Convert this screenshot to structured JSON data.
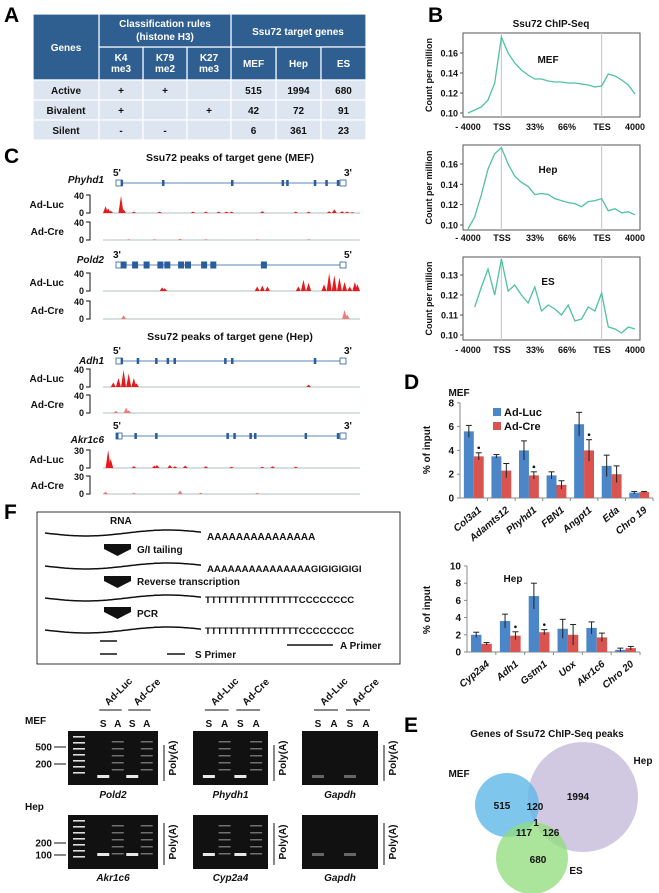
{
  "panel_labels": {
    "A": "A",
    "B": "B",
    "C": "C",
    "D": "D",
    "E": "E",
    "F": "F"
  },
  "colors": {
    "table_header": "#2f5e91",
    "table_row": "#dde5f0",
    "line": "#4fc39a",
    "luc": "#4a86c8",
    "cre": "#d9534f",
    "peak": "#e8191c",
    "gene": "#2a5d9c",
    "mef": "#5fb8e8",
    "hep": "#c9bfdc",
    "es": "#8fdc7a"
  },
  "table": {
    "genes_header": "Genes",
    "rules_header_1": "Classification rules",
    "rules_header_2": "(histone H3)",
    "targets_header": "Ssu72 target genes",
    "marks": [
      [
        "K4",
        "me3"
      ],
      [
        "K79",
        "me2"
      ],
      [
        "K27",
        "me3"
      ]
    ],
    "cells": [
      "MEF",
      "Hep",
      "ES"
    ],
    "rows": [
      {
        "gene": "Active",
        "marks": [
          "+",
          "+",
          ""
        ],
        "values": [
          "515",
          "1994",
          "680"
        ]
      },
      {
        "gene": "Bivalent",
        "marks": [
          "+",
          "",
          "+"
        ],
        "values": [
          "42",
          "72",
          "91"
        ]
      },
      {
        "gene": "Silent",
        "marks": [
          "-",
          "-",
          ""
        ],
        "values": [
          "6",
          "361",
          "23"
        ]
      }
    ]
  },
  "chart_data": [
    {
      "id": "B-MEF",
      "type": "line",
      "title": "Ssu72 ChIP-Seq",
      "label": "MEF",
      "ylabel": "Count per million",
      "xticks": [
        "- 4000",
        "TSS",
        "33%",
        "66%",
        "TES",
        "4000"
      ],
      "yticks": [
        "0.10",
        "0.12",
        "0.14",
        "0.16"
      ],
      "ylim": [
        0.1,
        0.18
      ],
      "y": [
        0.1,
        0.103,
        0.106,
        0.113,
        0.13,
        0.176,
        0.16,
        0.15,
        0.143,
        0.138,
        0.134,
        0.134,
        0.132,
        0.131,
        0.131,
        0.13,
        0.13,
        0.129,
        0.128,
        0.126,
        0.127,
        0.139,
        0.137,
        0.133,
        0.128,
        0.119
      ]
    },
    {
      "id": "B-Hep",
      "type": "line",
      "label": "Hep",
      "ylabel": "Count per million",
      "xticks": [
        "- 4000",
        "TSS",
        "33%",
        "66%",
        "TES",
        "4000"
      ],
      "yticks": [
        "0.10",
        "0.12",
        "0.14",
        "0.16"
      ],
      "ylim": [
        0.1,
        0.18
      ],
      "y": [
        0.095,
        0.108,
        0.13,
        0.155,
        0.17,
        0.176,
        0.16,
        0.148,
        0.142,
        0.138,
        0.13,
        0.131,
        0.13,
        0.126,
        0.124,
        0.122,
        0.121,
        0.118,
        0.123,
        0.124,
        0.126,
        0.114,
        0.116,
        0.112,
        0.113,
        0.11
      ]
    },
    {
      "id": "B-ES",
      "type": "line",
      "label": "ES",
      "ylabel": "Count per million",
      "xticks": [
        "- 4000",
        "TSS",
        "33%",
        "66%",
        "TES",
        "4000"
      ],
      "yticks": [
        "0.10",
        "0.11",
        "0.12",
        "0.13"
      ],
      "ylim": [
        0.1,
        0.14
      ],
      "y": [
        null,
        0.114,
        0.124,
        0.133,
        0.12,
        0.138,
        0.122,
        0.125,
        0.12,
        0.116,
        0.124,
        0.112,
        0.115,
        0.113,
        0.11,
        0.115,
        0.107,
        0.108,
        0.114,
        0.112,
        0.121,
        0.104,
        0.103,
        0.101,
        0.104,
        0.103
      ]
    },
    {
      "id": "D-MEF",
      "type": "bar",
      "title": "MEF",
      "ylabel": "% of input",
      "ylim": [
        0,
        8
      ],
      "yticks": [
        "0",
        "2",
        "4",
        "6",
        "8"
      ],
      "categories": [
        "Col3a1",
        "Adamts12",
        "Phyhd1",
        "FBN1",
        "Angpt1",
        "Eda",
        "Chro 19"
      ],
      "series": [
        {
          "name": "Ad-Luc",
          "values": [
            5.6,
            3.5,
            4.0,
            1.9,
            6.2,
            2.7,
            0.45
          ],
          "errors": [
            0.5,
            0.15,
            0.8,
            0.3,
            1.0,
            0.9,
            0.1
          ]
        },
        {
          "name": "Ad-Cre",
          "values": [
            3.5,
            2.3,
            1.9,
            1.1,
            4.0,
            2.0,
            0.5
          ],
          "errors": [
            0.3,
            0.6,
            0.3,
            0.35,
            0.9,
            0.7,
            0.05
          ]
        }
      ],
      "significant": [
        true,
        false,
        true,
        false,
        true,
        false,
        false
      ],
      "legend": "top-left"
    },
    {
      "id": "D-Hep",
      "type": "bar",
      "title": "Hep",
      "ylabel": "% of input",
      "ylim": [
        0,
        10
      ],
      "yticks": [
        "0",
        "2",
        "4",
        "6",
        "8",
        "10"
      ],
      "categories": [
        "Cyp2a4",
        "Adh1",
        "Gstm1",
        "Uox",
        "Akr1c6",
        "Chro 20"
      ],
      "series": [
        {
          "name": "Ad-Luc",
          "values": [
            2.0,
            3.6,
            6.5,
            2.7,
            2.8,
            0.25
          ],
          "errors": [
            0.3,
            0.8,
            1.5,
            1.1,
            0.7,
            0.2
          ]
        },
        {
          "name": "Ad-Cre",
          "values": [
            0.95,
            1.9,
            2.3,
            2.0,
            1.7,
            0.45
          ],
          "errors": [
            0.15,
            0.45,
            0.3,
            1.2,
            0.5,
            0.2
          ]
        }
      ],
      "significant": [
        false,
        true,
        true,
        false,
        false,
        false
      ]
    },
    {
      "id": "E",
      "type": "venn",
      "title": "Genes of Ssu72 ChIP-Seq peaks",
      "sets": [
        "MEF",
        "Hep",
        "ES"
      ],
      "regions": {
        "MEF_only": "515",
        "Hep_only": "1994",
        "ES_only": "680",
        "MEF_Hep": "120",
        "MEF_ES": "117",
        "Hep_ES": "126",
        "all": "1"
      }
    }
  ],
  "genome_tracks": {
    "title_mef": "Ssu72 peaks of target gene (MEF)",
    "title_hep": "Ssu72 peaks of target gene  (Hep)",
    "genes": [
      {
        "name": "Phyhd1",
        "left": "5'",
        "right": "3'",
        "exons": [
          2,
          20,
          50,
          72,
          74,
          86,
          91,
          96
        ],
        "thick": false,
        "tracks": [
          {
            "label": "Ad-Luc",
            "max": "40",
            "min": "0",
            "peaks": [
              [
                1,
                15
              ],
              [
                2,
                10
              ],
              [
                3,
                5
              ],
              [
                7,
                38
              ],
              [
                8,
                8
              ],
              [
                12,
                3
              ],
              [
                22,
                3
              ],
              [
                35,
                3
              ],
              [
                40,
                3
              ],
              [
                45,
                3
              ],
              [
                48,
                3
              ],
              [
                50,
                3
              ],
              [
                62,
                4
              ],
              [
                75,
                3
              ],
              [
                80,
                3
              ],
              [
                88,
                4
              ],
              [
                90,
                8
              ],
              [
                93,
                4
              ],
              [
                95,
                3
              ],
              [
                97,
                2
              ]
            ]
          },
          {
            "label": "Ad-Cre",
            "max": "40",
            "min": "0",
            "peaks": [
              [
                10,
                2
              ],
              [
                20,
                2
              ],
              [
                30,
                3
              ],
              [
                40,
                2
              ],
              [
                60,
                2
              ],
              [
                80,
                2
              ]
            ]
          }
        ]
      },
      {
        "name": "Pold2",
        "left": "3'",
        "right": "5'",
        "exons": [
          2,
          7,
          12,
          18,
          21,
          27,
          30,
          37,
          41,
          63
        ],
        "thick": true,
        "tracks": [
          {
            "label": "Ad-Luc",
            "max": "40",
            "min": "0",
            "peaks": [
              [
                23,
                8
              ],
              [
                24,
                6
              ],
              [
                60,
                10
              ],
              [
                62,
                12
              ],
              [
                64,
                10
              ],
              [
                76,
                10
              ],
              [
                78,
                25
              ],
              [
                80,
                18
              ],
              [
                86,
                15
              ],
              [
                88,
                40
              ],
              [
                90,
                35
              ],
              [
                92,
                30
              ],
              [
                94,
                20
              ],
              [
                96,
                10
              ],
              [
                98,
                20
              ],
              [
                99,
                15
              ]
            ]
          },
          {
            "label": "Ad-Cre",
            "max": "40",
            "min": "0",
            "peaks": [
              [
                8,
                8
              ],
              [
                94,
                20
              ],
              [
                95,
                10
              ]
            ]
          }
        ]
      },
      {
        "name": "Adh1",
        "left": "5'",
        "right": "3'",
        "exons": [
          2,
          9,
          17,
          22,
          25,
          47,
          50,
          86
        ],
        "thick": false,
        "tracks": [
          {
            "label": "Ad-Luc",
            "max": "40",
            "min": "0",
            "peaks": [
              [
                4,
                10
              ],
              [
                6,
                20
              ],
              [
                8,
                38
              ],
              [
                10,
                30
              ],
              [
                12,
                20
              ],
              [
                13,
                8
              ],
              [
                80,
                5
              ]
            ]
          },
          {
            "label": "Ad-Cre",
            "max": "40",
            "min": "0",
            "peaks": [
              [
                5,
                5
              ],
              [
                9,
                12
              ],
              [
                10,
                6
              ]
            ]
          }
        ]
      },
      {
        "name": "Akr1c6",
        "left": "5'",
        "right": "3'",
        "exons": [
          0,
          8,
          17,
          48,
          51,
          58,
          60,
          82,
          96
        ],
        "thick": false,
        "tracks": [
          {
            "label": "Ad-Luc",
            "max": "30",
            "min": "0",
            "peaks": [
              [
                2,
                30
              ],
              [
                3,
                15
              ],
              [
                12,
                3
              ],
              [
                20,
                4
              ],
              [
                21,
                5
              ],
              [
                26,
                5
              ],
              [
                28,
                3
              ],
              [
                32,
                4
              ],
              [
                40,
                3
              ],
              [
                50,
                2
              ],
              [
                62,
                2
              ],
              [
                66,
                3
              ],
              [
                75,
                2
              ]
            ]
          },
          {
            "label": "Ad-Cre",
            "max": "30",
            "min": "0",
            "peaks": [
              [
                1,
                4
              ],
              [
                12,
                2
              ],
              [
                30,
                6
              ],
              [
                38,
                2
              ],
              [
                60,
                2
              ]
            ]
          }
        ]
      }
    ]
  },
  "scheme": {
    "rna": "RNA",
    "seq1": "AAAAAAAAAAAAAAA",
    "step1": "G/I tailing",
    "seq2": "AAAAAAAAAAAAAAAGIGIGIGIGI",
    "step2": "Reverse transcription",
    "seq3": "TTTTTTTTTTTTTTTTCCCCCCCC",
    "step3": "PCR",
    "seq4": "TTTTTTTTTTTTTTTTCCCCCCCC",
    "s_primer": "S Primer",
    "a_primer": "A Primer"
  },
  "gels": {
    "row_labels": [
      "MEF",
      "Hep"
    ],
    "groups": [
      "Ad-Luc",
      "Ad-Cre"
    ],
    "lanes": [
      "S",
      "A",
      "S",
      "A"
    ],
    "polya": "Poly(A)",
    "markers_row1": [
      "500",
      "200"
    ],
    "markers_row2": [
      "200",
      "100"
    ],
    "genes_row1": [
      "Pold2",
      "Phydh1",
      "Gapdh"
    ],
    "genes_row2": [
      "Akr1c6",
      "Cyp2a4",
      "Gapdh"
    ]
  }
}
